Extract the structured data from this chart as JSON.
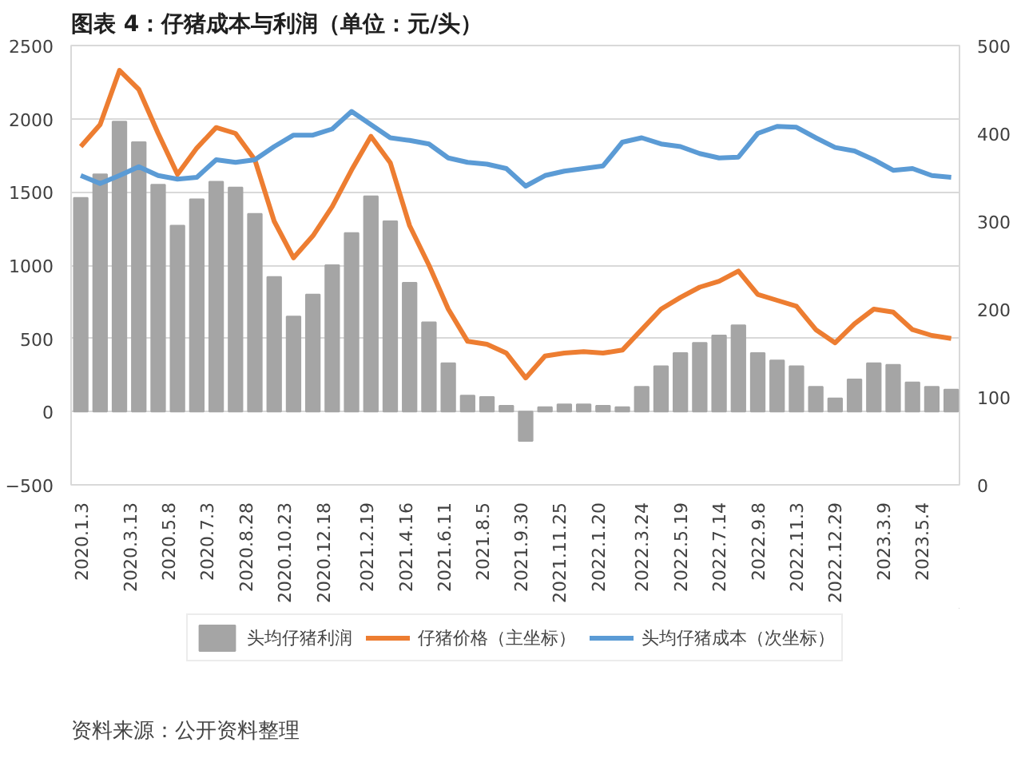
{
  "chart_data": {
    "type": "bar",
    "title": "图表 4：仔猪成本与利润（单位：元/头）",
    "annotations": [
      "资料来源：公开资料整理"
    ],
    "x": [
      "2020-01-03",
      "2020-01-31",
      "2020-02-28",
      "2020-03-27",
      "2020-04-24",
      "2020-05-22",
      "2020-06-19",
      "2020-07-17",
      "2020-08-14",
      "2020-09-11",
      "2020-10-09",
      "2020-11-06",
      "2020-12-04",
      "2021-01-01",
      "2021-01-29",
      "2021-02-26",
      "2021-03-26",
      "2021-04-23",
      "2021-05-21",
      "2021-06-18",
      "2021-07-16",
      "2021-08-13",
      "2021-09-10",
      "2021-10-08",
      "2021-11-05",
      "2021-12-03",
      "2021-12-31",
      "2022-01-28",
      "2022-02-25",
      "2022-03-25",
      "2022-04-22",
      "2022-05-20",
      "2022-06-17",
      "2022-07-15",
      "2022-08-12",
      "2022-09-09",
      "2022-10-07",
      "2022-11-04",
      "2022-12-02",
      "2022-12-30",
      "2023-01-27",
      "2023-02-24",
      "2023-03-24",
      "2023-04-21",
      "2023-05-19",
      "2023-06-16"
    ],
    "series": [
      {
        "name": "头均仔猪利润",
        "color": "#a5a5a5",
        "values": [
          1460,
          1620,
          1980,
          1840,
          1550,
          1270,
          1450,
          1570,
          1530,
          1350,
          920,
          650,
          800,
          1000,
          1220,
          1470,
          1300,
          880,
          610,
          330,
          110,
          100,
          40,
          -200,
          30,
          50,
          50,
          40,
          30,
          170,
          310,
          400,
          470,
          520,
          590,
          400,
          350,
          310,
          170,
          90,
          220,
          330,
          320,
          200,
          170,
          150
        ]
      },
      {
        "name": "仔猪价格（主坐标）",
        "type": "line",
        "color": "#ed7d31",
        "values": [
          1810,
          1960,
          2330,
          2200,
          1900,
          1620,
          1800,
          1940,
          1900,
          1720,
          1300,
          1050,
          1200,
          1400,
          1650,
          1880,
          1700,
          1270,
          1000,
          700,
          480,
          460,
          400,
          230,
          380,
          400,
          410,
          400,
          420,
          560,
          700,
          780,
          850,
          890,
          960,
          800,
          760,
          720,
          560,
          470,
          600,
          700,
          680,
          560,
          520,
          500
        ]
      },
      {
        "name": "头均仔猪成本（次坐标）",
        "type": "line",
        "axis": "y2",
        "color": "#5b9bd5",
        "values": [
          352,
          343,
          352,
          362,
          352,
          348,
          350,
          370,
          367,
          370,
          385,
          398,
          398,
          405,
          425,
          410,
          395,
          392,
          388,
          372,
          367,
          365,
          360,
          340,
          352,
          357,
          360,
          363,
          390,
          395,
          388,
          385,
          377,
          372,
          373,
          400,
          408,
          407,
          395,
          384,
          380,
          370,
          358,
          360,
          352,
          350
        ]
      }
    ],
    "xlim": [
      "2019-12-20",
      "2023-06-28"
    ],
    "xticks": [
      {
        "value": "2020-01-03",
        "label": "2020.1.3"
      },
      {
        "value": "2020-03-13",
        "label": "2020.3.13"
      },
      {
        "value": "2020-05-08",
        "label": "2020.5.8"
      },
      {
        "value": "2020-07-03",
        "label": "2020.7.3"
      },
      {
        "value": "2020-08-28",
        "label": "2020.8.28"
      },
      {
        "value": "2020-10-23",
        "label": "2020.10.23"
      },
      {
        "value": "2020-12-18",
        "label": "2020.12.18"
      },
      {
        "value": "2021-02-19",
        "label": "2021.2.19"
      },
      {
        "value": "2021-04-16",
        "label": "2021.4.16"
      },
      {
        "value": "2021-06-11",
        "label": "2021.6.11"
      },
      {
        "value": "2021-08-05",
        "label": "2021.8.5"
      },
      {
        "value": "2021-09-30",
        "label": "2021.9.30"
      },
      {
        "value": "2021-11-25",
        "label": "2021.11.25"
      },
      {
        "value": "2022-01-20",
        "label": "2022.1.20"
      },
      {
        "value": "2022-03-24",
        "label": "2022.3.24"
      },
      {
        "value": "2022-05-19",
        "label": "2022.5.19"
      },
      {
        "value": "2022-07-14",
        "label": "2022.7.14"
      },
      {
        "value": "2022-09-08",
        "label": "2022.9.8"
      },
      {
        "value": "2022-11-03",
        "label": "2022.11.3"
      },
      {
        "value": "2022-12-29",
        "label": "2022.12.29"
      },
      {
        "value": "2023-03-09",
        "label": "2023.3.9"
      },
      {
        "value": "2023-05-04",
        "label": "2023.5.4"
      }
    ],
    "ylim": [
      -500,
      2500
    ],
    "yticks": [
      {
        "value": -500,
        "label": "−500"
      },
      0,
      500,
      1000,
      1500,
      2000,
      2500
    ],
    "y2lim": [
      0,
      500
    ],
    "y2ticks": [
      0,
      100,
      200,
      300,
      400,
      500
    ],
    "grid": "y",
    "legend": "bottom"
  }
}
